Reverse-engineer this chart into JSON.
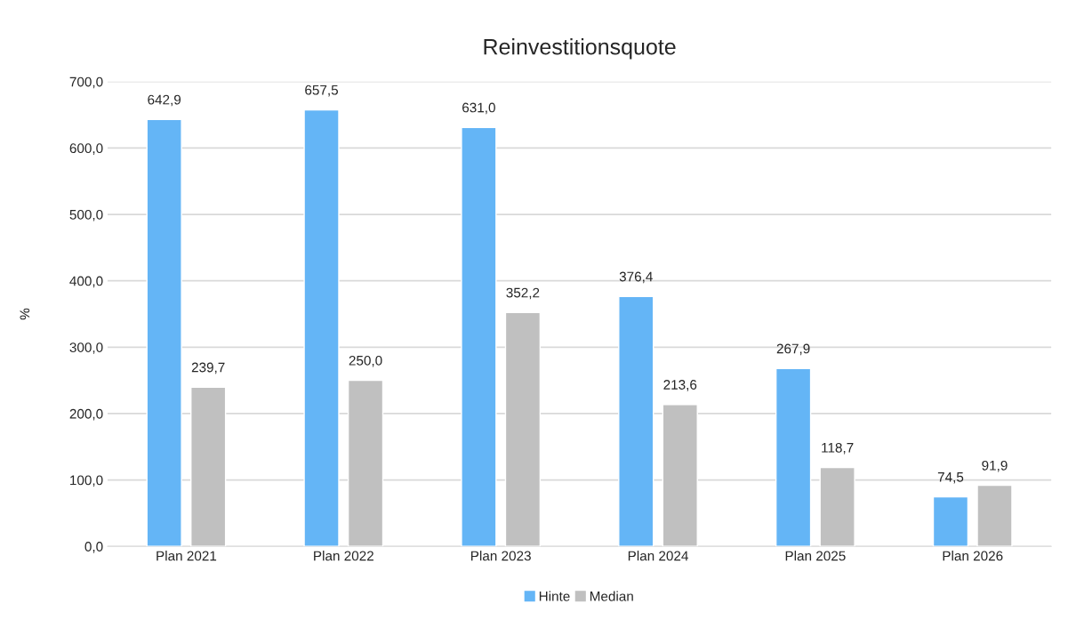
{
  "chart_data": {
    "type": "bar",
    "title": "Reinvestitionsquote",
    "ylabel": "%",
    "categories": [
      "Plan 2021",
      "Plan 2022",
      "Plan 2023",
      "Plan 2024",
      "Plan 2025",
      "Plan 2026"
    ],
    "series": [
      {
        "name": "Hinte",
        "color": "#64b5f6",
        "values": [
          642.9,
          657.5,
          631.0,
          376.4,
          267.9,
          74.5
        ],
        "value_labels": [
          "642,9",
          "657,5",
          "631,0",
          "376,4",
          "267,9",
          "74,5"
        ]
      },
      {
        "name": "Median",
        "color": "#c0c0c0",
        "values": [
          239.7,
          250.0,
          352.2,
          213.6,
          118.7,
          91.9
        ],
        "value_labels": [
          "239,7",
          "250,0",
          "352,2",
          "213,6",
          "118,7",
          "91,9"
        ]
      }
    ],
    "ylim": [
      0,
      700
    ],
    "yticks": [
      {
        "value": 0,
        "label": "0,0"
      },
      {
        "value": 100,
        "label": "100,0"
      },
      {
        "value": 200,
        "label": "200,0"
      },
      {
        "value": 300,
        "label": "300,0"
      },
      {
        "value": 400,
        "label": "400,0"
      },
      {
        "value": 500,
        "label": "500,0"
      },
      {
        "value": 600,
        "label": "600,0"
      },
      {
        "value": 700,
        "label": "700,0"
      }
    ],
    "grid": "y",
    "legend": "bottom"
  }
}
